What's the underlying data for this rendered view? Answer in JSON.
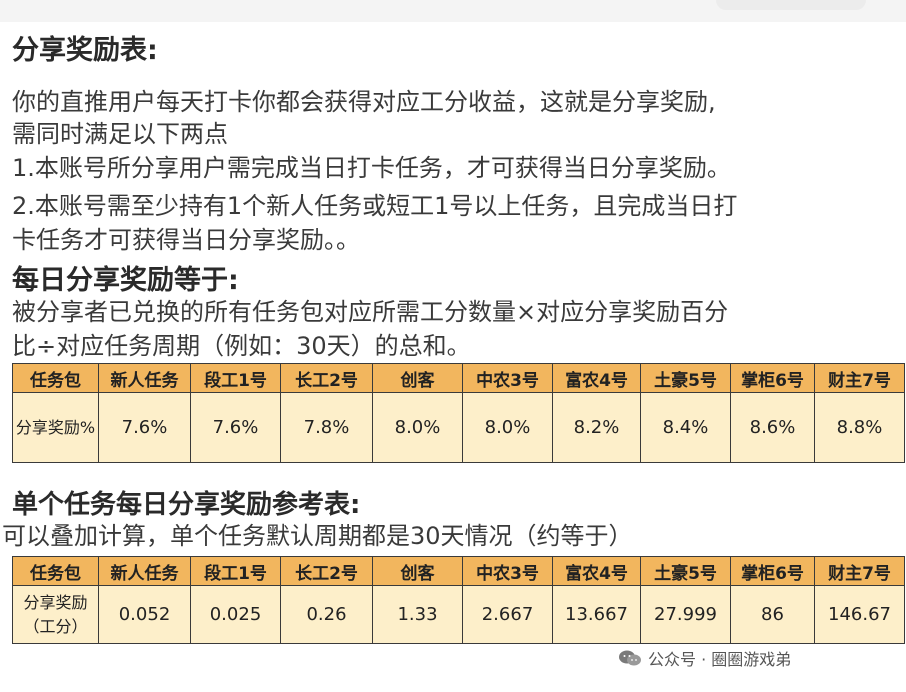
{
  "section1": {
    "title": "分享奖励表:",
    "lines": [
      "你的直推用户每天打卡你都会获得对应工分收益，这就是分享奖励,",
      "需同时满足以下两点",
      "1.本账号所分享用户需完成当日打卡任务，才可获得当日分享奖励。",
      "2.本账号需至少持有1个新人任务或短工1号以上任务，且完成当日打",
      "卡任务才可获得当日分享奖励。。"
    ]
  },
  "section2": {
    "title": "每日分享奖励等于:",
    "lines": [
      "被分享者已兑换的所有任务包对应所需工分数量×对应分享奖励百分",
      "比÷对应任务周期（例如：30天）的总和。"
    ]
  },
  "table1": {
    "headers": [
      "任务包",
      "新人任务",
      "段工1号",
      "长工2号",
      "创客",
      "中农3号",
      "富农4号",
      "土豪5号",
      "掌柜6号",
      "财主7号"
    ],
    "row_label": "分享奖励%",
    "values": [
      "7.6%",
      "7.6%",
      "7.8%",
      "8.0%",
      "8.0%",
      "8.2%",
      "8.4%",
      "8.6%",
      "8.8%"
    ]
  },
  "section3": {
    "title": "单个任务每日分享奖励参考表:",
    "line": "可以叠加计算，单个任务默认周期都是30天情况（约等于）"
  },
  "table2": {
    "headers": [
      "任务包",
      "新人任务",
      "段工1号",
      "长工2号",
      "创客",
      "中农3号",
      "富农4号",
      "土豪5号",
      "掌柜6号",
      "财主7号"
    ],
    "row_label": "分享奖励（工分）",
    "values": [
      "0.052",
      "0.025",
      "0.26",
      "1.33",
      "2.667",
      "13.667",
      "27.999",
      "86",
      "146.67"
    ]
  },
  "watermark": {
    "icon": "wechat-icon",
    "text": "公众号 · 圈圈游戏弟"
  }
}
